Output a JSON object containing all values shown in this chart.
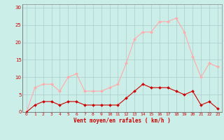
{
  "x": [
    0,
    1,
    2,
    3,
    4,
    5,
    6,
    7,
    8,
    9,
    10,
    11,
    12,
    13,
    14,
    15,
    16,
    17,
    18,
    19,
    20,
    21,
    22,
    23
  ],
  "wind_avg": [
    0,
    2,
    3,
    3,
    2,
    3,
    3,
    2,
    2,
    2,
    2,
    2,
    4,
    6,
    8,
    7,
    7,
    7,
    6,
    5,
    6,
    2,
    3,
    1
  ],
  "wind_gust": [
    0,
    7,
    8,
    8,
    6,
    10,
    11,
    6,
    6,
    6,
    7,
    8,
    14,
    21,
    23,
    23,
    26,
    26,
    27,
    23,
    16,
    10,
    14,
    13
  ],
  "avg_color": "#cc0000",
  "gust_color": "#ffaaaa",
  "bg_color": "#cceee8",
  "grid_color": "#aacccc",
  "xlabel": "Vent moyen/en rafales ( km/h )",
  "xlabel_color": "#cc0000",
  "ylabel_ticks": [
    0,
    5,
    10,
    15,
    20,
    25,
    30
  ],
  "ylim": [
    0,
    31
  ],
  "xlim": [
    -0.5,
    23.5
  ],
  "tick_color": "#cc0000"
}
